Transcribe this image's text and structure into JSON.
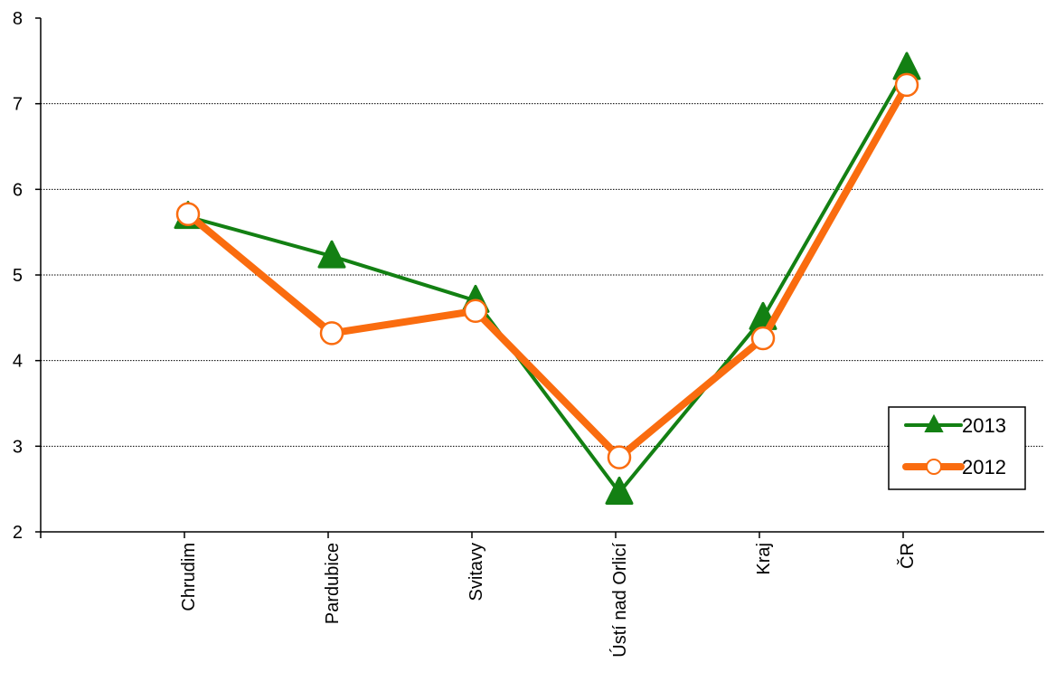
{
  "chart_data": {
    "type": "line",
    "categories": [
      "Chrudim",
      "Pardubice",
      "Svitavy",
      "Ústí nad Orlicí",
      "Kraj",
      "ČR"
    ],
    "series": [
      {
        "name": "2013",
        "values": [
          5.68,
          5.22,
          4.7,
          2.46,
          4.5,
          7.42
        ],
        "color": "#138013",
        "marker": "triangle"
      },
      {
        "name": "2012",
        "values": [
          5.71,
          4.32,
          4.58,
          2.87,
          4.26,
          7.22
        ],
        "color": "#fa6c0f",
        "marker": "circle"
      }
    ],
    "ylim": [
      2,
      8
    ],
    "yticks": [
      2,
      3,
      4,
      5,
      6,
      7,
      8
    ],
    "gridlines": [
      3,
      4,
      5,
      6,
      7
    ],
    "grid": true,
    "legend_position": "right",
    "title": "",
    "xlabel": "",
    "ylabel": ""
  }
}
